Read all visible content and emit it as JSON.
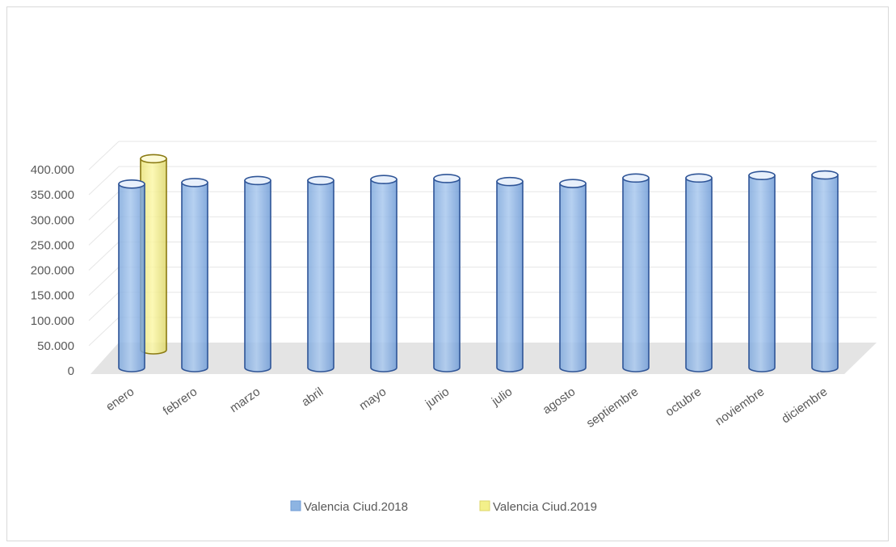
{
  "chart_data": {
    "type": "bar",
    "style": "3d-cylinder",
    "categories": [
      "enero",
      "febrero",
      "marzo",
      "abril",
      "mayo",
      "junio",
      "julio",
      "agosto",
      "septiembre",
      "octubre",
      "noviembre",
      "diciembre"
    ],
    "series": [
      {
        "name": "Valencia Ciud.2018",
        "color": "#8db4e2",
        "edge_color": "#2f5597",
        "values": [
          365000,
          368000,
          372000,
          372000,
          374000,
          376000,
          370000,
          366000,
          377000,
          377000,
          382000,
          383000
        ]
      },
      {
        "name": "Valencia Ciud.2019",
        "color": "#f3f08a",
        "edge_color": "#8a7a12",
        "values": [
          380000,
          null,
          null,
          null,
          null,
          null,
          null,
          null,
          null,
          null,
          null,
          null
        ]
      }
    ],
    "y_ticks": [
      "0",
      "50.000",
      "100.000",
      "150.000",
      "200.000",
      "250.000",
      "300.000",
      "350.000",
      "400.000"
    ],
    "ylim": [
      0,
      400000
    ],
    "grid": true,
    "legend_position": "bottom"
  }
}
